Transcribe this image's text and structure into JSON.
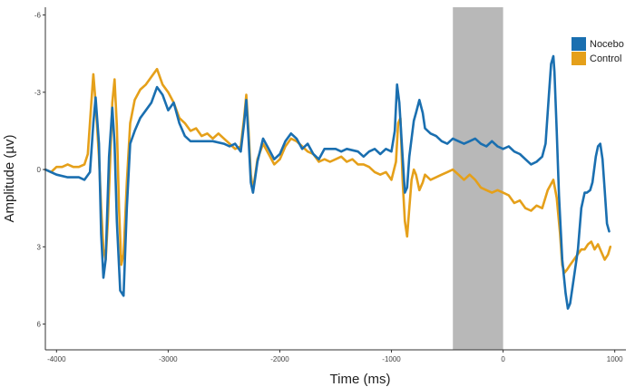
{
  "chart_data": {
    "type": "line",
    "title": "",
    "xlabel": "Time (ms)",
    "ylabel": "Amplitude (µv)",
    "xlim": [
      -4100,
      1100
    ],
    "ylim": [
      7,
      -6.3
    ],
    "y_inverted": true,
    "x_ticks": [
      -4000,
      -3000,
      -2000,
      -1000,
      0,
      1000
    ],
    "x_tick_labels": [
      "-4000",
      "-3000",
      "-2000",
      "-1000",
      "0",
      "1000"
    ],
    "y_ticks": [
      -6,
      -3,
      0,
      3,
      6
    ],
    "y_tick_labels": [
      "-6",
      "-3",
      "0",
      "3",
      "6"
    ],
    "grid": false,
    "legend_position": "top-right",
    "shaded_region": {
      "x_start": -450,
      "x_end": 0,
      "color": "#b8b8b8"
    },
    "series": [
      {
        "name": "Nocebo",
        "color": "#1a6fb0",
        "points": [
          [
            -4100,
            0
          ],
          [
            -4000,
            0.2
          ],
          [
            -3900,
            0.3
          ],
          [
            -3800,
            0.3
          ],
          [
            -3750,
            0.4
          ],
          [
            -3700,
            0.1
          ],
          [
            -3670,
            -1.8
          ],
          [
            -3650,
            -2.8
          ],
          [
            -3620,
            -1
          ],
          [
            -3600,
            2.5
          ],
          [
            -3580,
            4.2
          ],
          [
            -3560,
            3.5
          ],
          [
            -3530,
            -0.5
          ],
          [
            -3500,
            -2.4
          ],
          [
            -3480,
            -1
          ],
          [
            -3460,
            2
          ],
          [
            -3430,
            4.7
          ],
          [
            -3400,
            4.9
          ],
          [
            -3370,
            1.5
          ],
          [
            -3340,
            -1
          ],
          [
            -3300,
            -1.5
          ],
          [
            -3250,
            -2
          ],
          [
            -3200,
            -2.3
          ],
          [
            -3150,
            -2.6
          ],
          [
            -3100,
            -3.2
          ],
          [
            -3050,
            -2.9
          ],
          [
            -3000,
            -2.3
          ],
          [
            -2950,
            -2.6
          ],
          [
            -2900,
            -1.8
          ],
          [
            -2850,
            -1.3
          ],
          [
            -2800,
            -1.1
          ],
          [
            -2700,
            -1.1
          ],
          [
            -2600,
            -1.1
          ],
          [
            -2500,
            -1
          ],
          [
            -2450,
            -0.9
          ],
          [
            -2400,
            -1
          ],
          [
            -2350,
            -0.7
          ],
          [
            -2320,
            -1.8
          ],
          [
            -2300,
            -2.7
          ],
          [
            -2280,
            -1.2
          ],
          [
            -2260,
            0.5
          ],
          [
            -2240,
            0.9
          ],
          [
            -2220,
            0.3
          ],
          [
            -2200,
            -0.3
          ],
          [
            -2150,
            -1.2
          ],
          [
            -2100,
            -0.8
          ],
          [
            -2050,
            -0.4
          ],
          [
            -2000,
            -0.6
          ],
          [
            -1950,
            -1.1
          ],
          [
            -1900,
            -1.4
          ],
          [
            -1850,
            -1.2
          ],
          [
            -1800,
            -0.8
          ],
          [
            -1750,
            -1
          ],
          [
            -1700,
            -0.6
          ],
          [
            -1650,
            -0.4
          ],
          [
            -1600,
            -0.8
          ],
          [
            -1500,
            -0.8
          ],
          [
            -1450,
            -0.7
          ],
          [
            -1400,
            -0.8
          ],
          [
            -1300,
            -0.7
          ],
          [
            -1250,
            -0.5
          ],
          [
            -1200,
            -0.7
          ],
          [
            -1150,
            -0.8
          ],
          [
            -1100,
            -0.6
          ],
          [
            -1050,
            -0.8
          ],
          [
            -1000,
            -0.7
          ],
          [
            -970,
            -1.5
          ],
          [
            -950,
            -3.3
          ],
          [
            -930,
            -2.6
          ],
          [
            -900,
            -0.5
          ],
          [
            -880,
            0.9
          ],
          [
            -860,
            0.7
          ],
          [
            -840,
            -0.5
          ],
          [
            -820,
            -1.2
          ],
          [
            -800,
            -1.9
          ],
          [
            -780,
            -2.2
          ],
          [
            -750,
            -2.7
          ],
          [
            -720,
            -2.2
          ],
          [
            -700,
            -1.6
          ],
          [
            -650,
            -1.4
          ],
          [
            -600,
            -1.3
          ],
          [
            -550,
            -1.1
          ],
          [
            -500,
            -1
          ],
          [
            -450,
            -1.2
          ],
          [
            -400,
            -1.1
          ],
          [
            -350,
            -1
          ],
          [
            -300,
            -1.1
          ],
          [
            -250,
            -1.2
          ],
          [
            -200,
            -1
          ],
          [
            -150,
            -0.9
          ],
          [
            -100,
            -1.1
          ],
          [
            -50,
            -0.9
          ],
          [
            0,
            -0.8
          ],
          [
            50,
            -0.9
          ],
          [
            100,
            -0.7
          ],
          [
            150,
            -0.6
          ],
          [
            200,
            -0.4
          ],
          [
            250,
            -0.2
          ],
          [
            300,
            -0.3
          ],
          [
            350,
            -0.5
          ],
          [
            380,
            -1
          ],
          [
            410,
            -2.9
          ],
          [
            430,
            -4.1
          ],
          [
            450,
            -4.4
          ],
          [
            460,
            -3.8
          ],
          [
            480,
            -1.5
          ],
          [
            500,
            1
          ],
          [
            530,
            3.5
          ],
          [
            560,
            4.8
          ],
          [
            580,
            5.4
          ],
          [
            600,
            5.2
          ],
          [
            630,
            4.3
          ],
          [
            670,
            3.1
          ],
          [
            700,
            1.5
          ],
          [
            730,
            0.9
          ],
          [
            750,
            0.9
          ],
          [
            780,
            0.8
          ],
          [
            800,
            0.5
          ],
          [
            830,
            -0.5
          ],
          [
            850,
            -0.9
          ],
          [
            870,
            -1
          ],
          [
            890,
            -0.4
          ],
          [
            910,
            0.8
          ],
          [
            930,
            2.1
          ],
          [
            950,
            2.4
          ]
        ]
      },
      {
        "name": "Control",
        "color": "#e5a01a",
        "points": [
          [
            -4100,
            0
          ],
          [
            -4050,
            0.1
          ],
          [
            -4000,
            -0.1
          ],
          [
            -3950,
            -0.1
          ],
          [
            -3900,
            -0.2
          ],
          [
            -3850,
            -0.1
          ],
          [
            -3800,
            -0.1
          ],
          [
            -3750,
            -0.2
          ],
          [
            -3720,
            -0.6
          ],
          [
            -3690,
            -2.5
          ],
          [
            -3670,
            -3.7
          ],
          [
            -3650,
            -2.6
          ],
          [
            -3620,
            -0.5
          ],
          [
            -3600,
            1.5
          ],
          [
            -3580,
            3.1
          ],
          [
            -3560,
            3.5
          ],
          [
            -3540,
            2
          ],
          [
            -3520,
            -0.3
          ],
          [
            -3500,
            -2.6
          ],
          [
            -3480,
            -3.5
          ],
          [
            -3460,
            -1.7
          ],
          [
            -3440,
            1.5
          ],
          [
            -3420,
            3.7
          ],
          [
            -3400,
            3.3
          ],
          [
            -3370,
            0.5
          ],
          [
            -3340,
            -1.8
          ],
          [
            -3300,
            -2.7
          ],
          [
            -3250,
            -3.1
          ],
          [
            -3200,
            -3.3
          ],
          [
            -3150,
            -3.6
          ],
          [
            -3100,
            -3.9
          ],
          [
            -3050,
            -3.3
          ],
          [
            -3000,
            -3
          ],
          [
            -2950,
            -2.6
          ],
          [
            -2900,
            -2
          ],
          [
            -2850,
            -1.8
          ],
          [
            -2800,
            -1.5
          ],
          [
            -2750,
            -1.6
          ],
          [
            -2700,
            -1.3
          ],
          [
            -2650,
            -1.4
          ],
          [
            -2600,
            -1.2
          ],
          [
            -2550,
            -1.4
          ],
          [
            -2500,
            -1.2
          ],
          [
            -2450,
            -1
          ],
          [
            -2400,
            -0.8
          ],
          [
            -2350,
            -0.9
          ],
          [
            -2320,
            -2
          ],
          [
            -2300,
            -2.9
          ],
          [
            -2280,
            -1.5
          ],
          [
            -2260,
            0.2
          ],
          [
            -2240,
            0.8
          ],
          [
            -2220,
            0.2
          ],
          [
            -2200,
            -0.4
          ],
          [
            -2150,
            -1
          ],
          [
            -2100,
            -0.6
          ],
          [
            -2050,
            -0.2
          ],
          [
            -2000,
            -0.4
          ],
          [
            -1950,
            -0.9
          ],
          [
            -1900,
            -1.2
          ],
          [
            -1850,
            -1.1
          ],
          [
            -1800,
            -0.9
          ],
          [
            -1750,
            -0.7
          ],
          [
            -1700,
            -0.6
          ],
          [
            -1650,
            -0.3
          ],
          [
            -1600,
            -0.4
          ],
          [
            -1550,
            -0.3
          ],
          [
            -1500,
            -0.4
          ],
          [
            -1450,
            -0.5
          ],
          [
            -1400,
            -0.3
          ],
          [
            -1350,
            -0.4
          ],
          [
            -1300,
            -0.2
          ],
          [
            -1250,
            -0.2
          ],
          [
            -1200,
            -0.1
          ],
          [
            -1150,
            0.1
          ],
          [
            -1100,
            0.2
          ],
          [
            -1050,
            0.1
          ],
          [
            -1000,
            0.4
          ],
          [
            -960,
            -0.3
          ],
          [
            -940,
            -1.8
          ],
          [
            -920,
            -2
          ],
          [
            -900,
            0.4
          ],
          [
            -880,
            2
          ],
          [
            -860,
            2.6
          ],
          [
            -840,
            1.5
          ],
          [
            -820,
            0.4
          ],
          [
            -800,
            0
          ],
          [
            -780,
            0.2
          ],
          [
            -750,
            0.8
          ],
          [
            -720,
            0.5
          ],
          [
            -700,
            0.2
          ],
          [
            -650,
            0.4
          ],
          [
            -600,
            0.3
          ],
          [
            -550,
            0.2
          ],
          [
            -500,
            0.1
          ],
          [
            -450,
            0
          ],
          [
            -400,
            0.2
          ],
          [
            -350,
            0.4
          ],
          [
            -300,
            0.2
          ],
          [
            -250,
            0.4
          ],
          [
            -200,
            0.7
          ],
          [
            -150,
            0.8
          ],
          [
            -100,
            0.9
          ],
          [
            -50,
            0.8
          ],
          [
            0,
            0.9
          ],
          [
            50,
            1
          ],
          [
            100,
            1.3
          ],
          [
            150,
            1.2
          ],
          [
            200,
            1.5
          ],
          [
            250,
            1.6
          ],
          [
            300,
            1.4
          ],
          [
            350,
            1.5
          ],
          [
            400,
            0.8
          ],
          [
            450,
            0.4
          ],
          [
            480,
            1.1
          ],
          [
            510,
            2.5
          ],
          [
            530,
            3.7
          ],
          [
            550,
            4
          ],
          [
            570,
            3.9
          ],
          [
            600,
            3.7
          ],
          [
            650,
            3.4
          ],
          [
            700,
            3.1
          ],
          [
            730,
            3.1
          ],
          [
            760,
            2.9
          ],
          [
            790,
            2.8
          ],
          [
            820,
            3.1
          ],
          [
            850,
            2.9
          ],
          [
            880,
            3.2
          ],
          [
            910,
            3.5
          ],
          [
            940,
            3.3
          ],
          [
            960,
            3
          ]
        ]
      }
    ]
  }
}
